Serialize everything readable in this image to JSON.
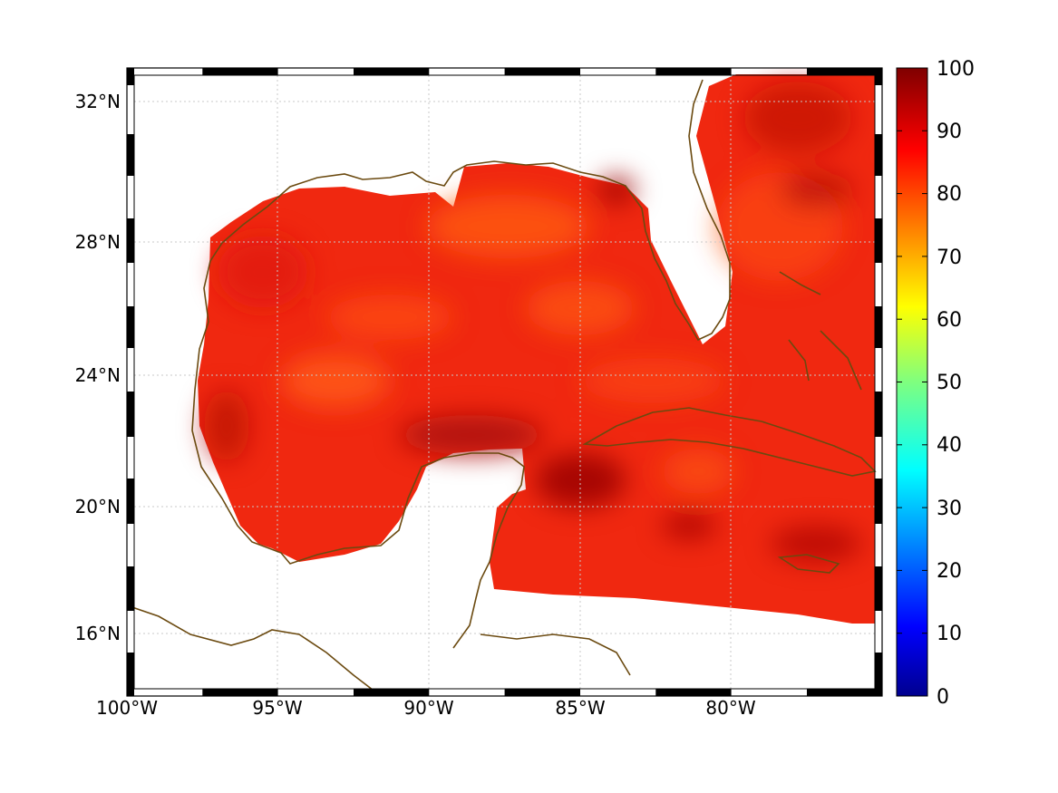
{
  "map": {
    "lon_ticks": [
      "100°W",
      "95°W",
      "90°W",
      "85°W",
      "80°W"
    ],
    "lat_ticks": [
      "32°N",
      "28°N",
      "24°N",
      "20°N",
      "16°N"
    ],
    "lon_range": [
      -100,
      -75
    ],
    "lat_range": [
      14.2,
      33
    ],
    "coastline_color": "#6b4a10",
    "grid": true
  },
  "colorbar": {
    "ticks": [
      "100",
      "90",
      "80",
      "70",
      "60",
      "50",
      "40",
      "30",
      "20",
      "10",
      "0"
    ],
    "range": [
      0,
      100
    ],
    "colormap": "jet"
  },
  "chart_data": {
    "type": "heatmap",
    "x_range_deg": [
      -100,
      -75
    ],
    "y_range_deg": [
      14.2,
      33
    ],
    "value_range": [
      0,
      100
    ],
    "field_typical_value": 87,
    "field_dark_patches_value": 96,
    "field_light_patches_value": 80
  }
}
